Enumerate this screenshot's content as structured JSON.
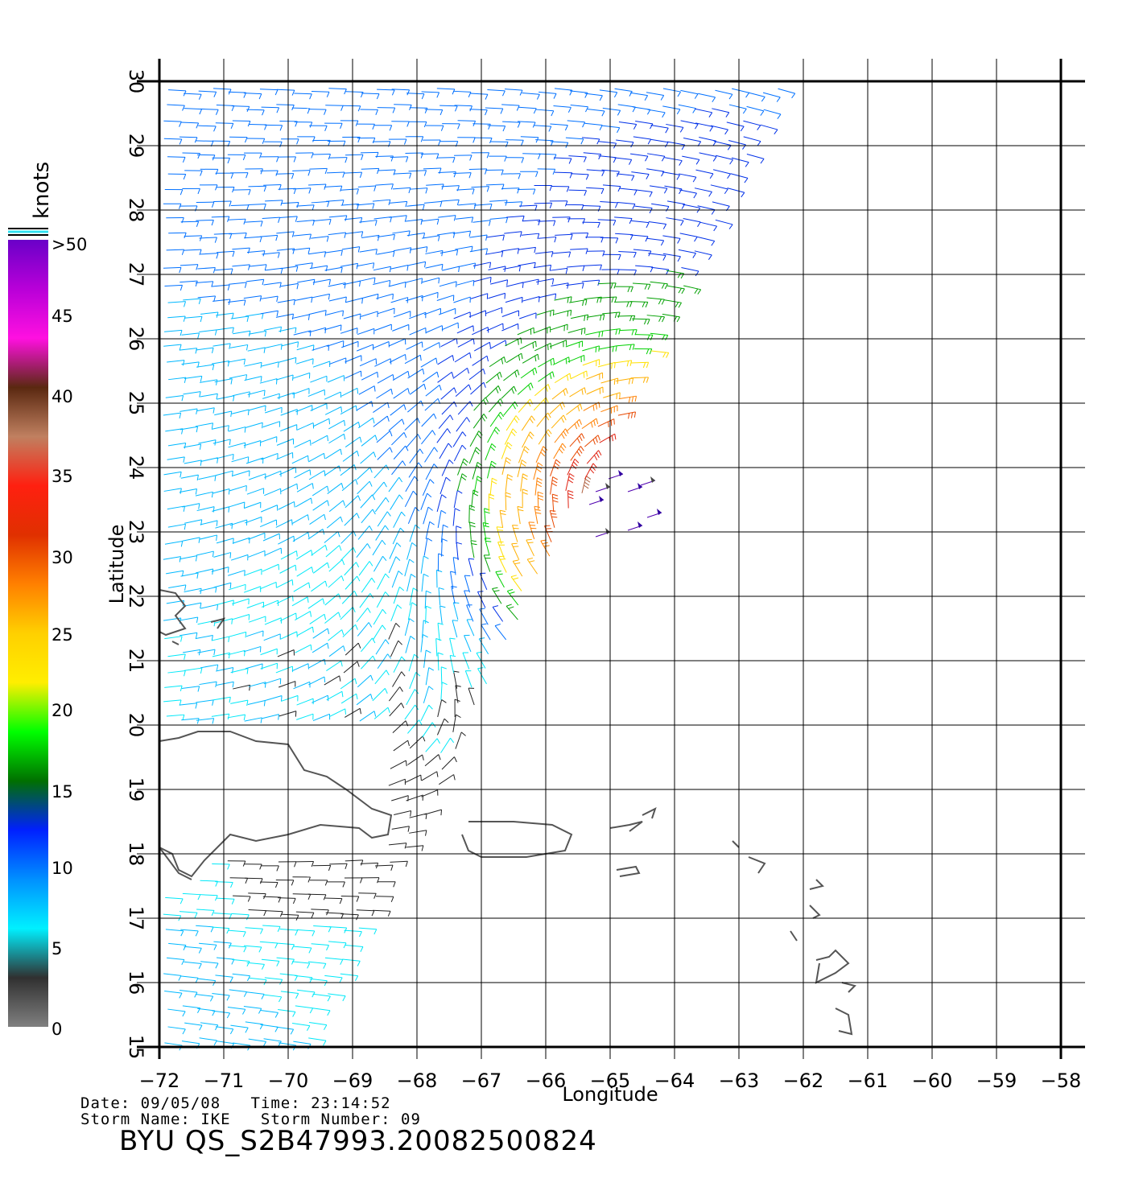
{
  "legend": {
    "units": "knots",
    "stops": [
      {
        "label": ">50",
        "color": "#6a00c8"
      },
      {
        "label": "45",
        "color": "#b800d8"
      },
      {
        "label": "40",
        "color": "#ff10e0"
      },
      {
        "label": "35",
        "color": "#c08060"
      },
      {
        "label": "30",
        "color": "#ff2010"
      },
      {
        "label": "25",
        "color": "#ff8000"
      },
      {
        "label": "20",
        "color": "#ffee00"
      },
      {
        "label": "15",
        "color": "#00b000"
      },
      {
        "label": "10",
        "color": "#0070ff"
      },
      {
        "label": "5",
        "color": "#00f0ff"
      },
      {
        "label": "0",
        "color": "#303030"
      }
    ],
    "gradient": [
      "#6a00c8",
      "#b800d8",
      "#ff10e0",
      "#5a2810",
      "#c08060",
      "#ff2010",
      "#e03000",
      "#ff8000",
      "#ffd000",
      "#ffee00",
      "#00ff00",
      "#007000",
      "#0020ff",
      "#0090ff",
      "#00f0ff",
      "#303030",
      "#808080"
    ]
  },
  "axes": {
    "xlabel": "Longitude",
    "ylabel": "Latitude",
    "lon_ticks": [
      "−72",
      "−71",
      "−70",
      "−69",
      "−68",
      "−67",
      "−66",
      "−65",
      "−64",
      "−63",
      "−62",
      "−61",
      "−60",
      "−59",
      "−58"
    ],
    "lat_ticks": [
      "15",
      "16",
      "17",
      "18",
      "19",
      "20",
      "21",
      "22",
      "23",
      "24",
      "25",
      "26",
      "27",
      "28",
      "29",
      "30"
    ],
    "lon_range": [
      -72,
      -58
    ],
    "lat_range": [
      15,
      30
    ],
    "grid": true
  },
  "footer": {
    "line1": "Date: 09/05/08   Time: 23:14:52",
    "line2": "Storm Name: IKE   Storm Number: 09",
    "title": "BYU QS_S2B47993.20082500824"
  },
  "storm_center": {
    "lon": -64.6,
    "lat": 23.4
  },
  "colors": {
    "grid": "#000000",
    "coast": "#555555"
  }
}
